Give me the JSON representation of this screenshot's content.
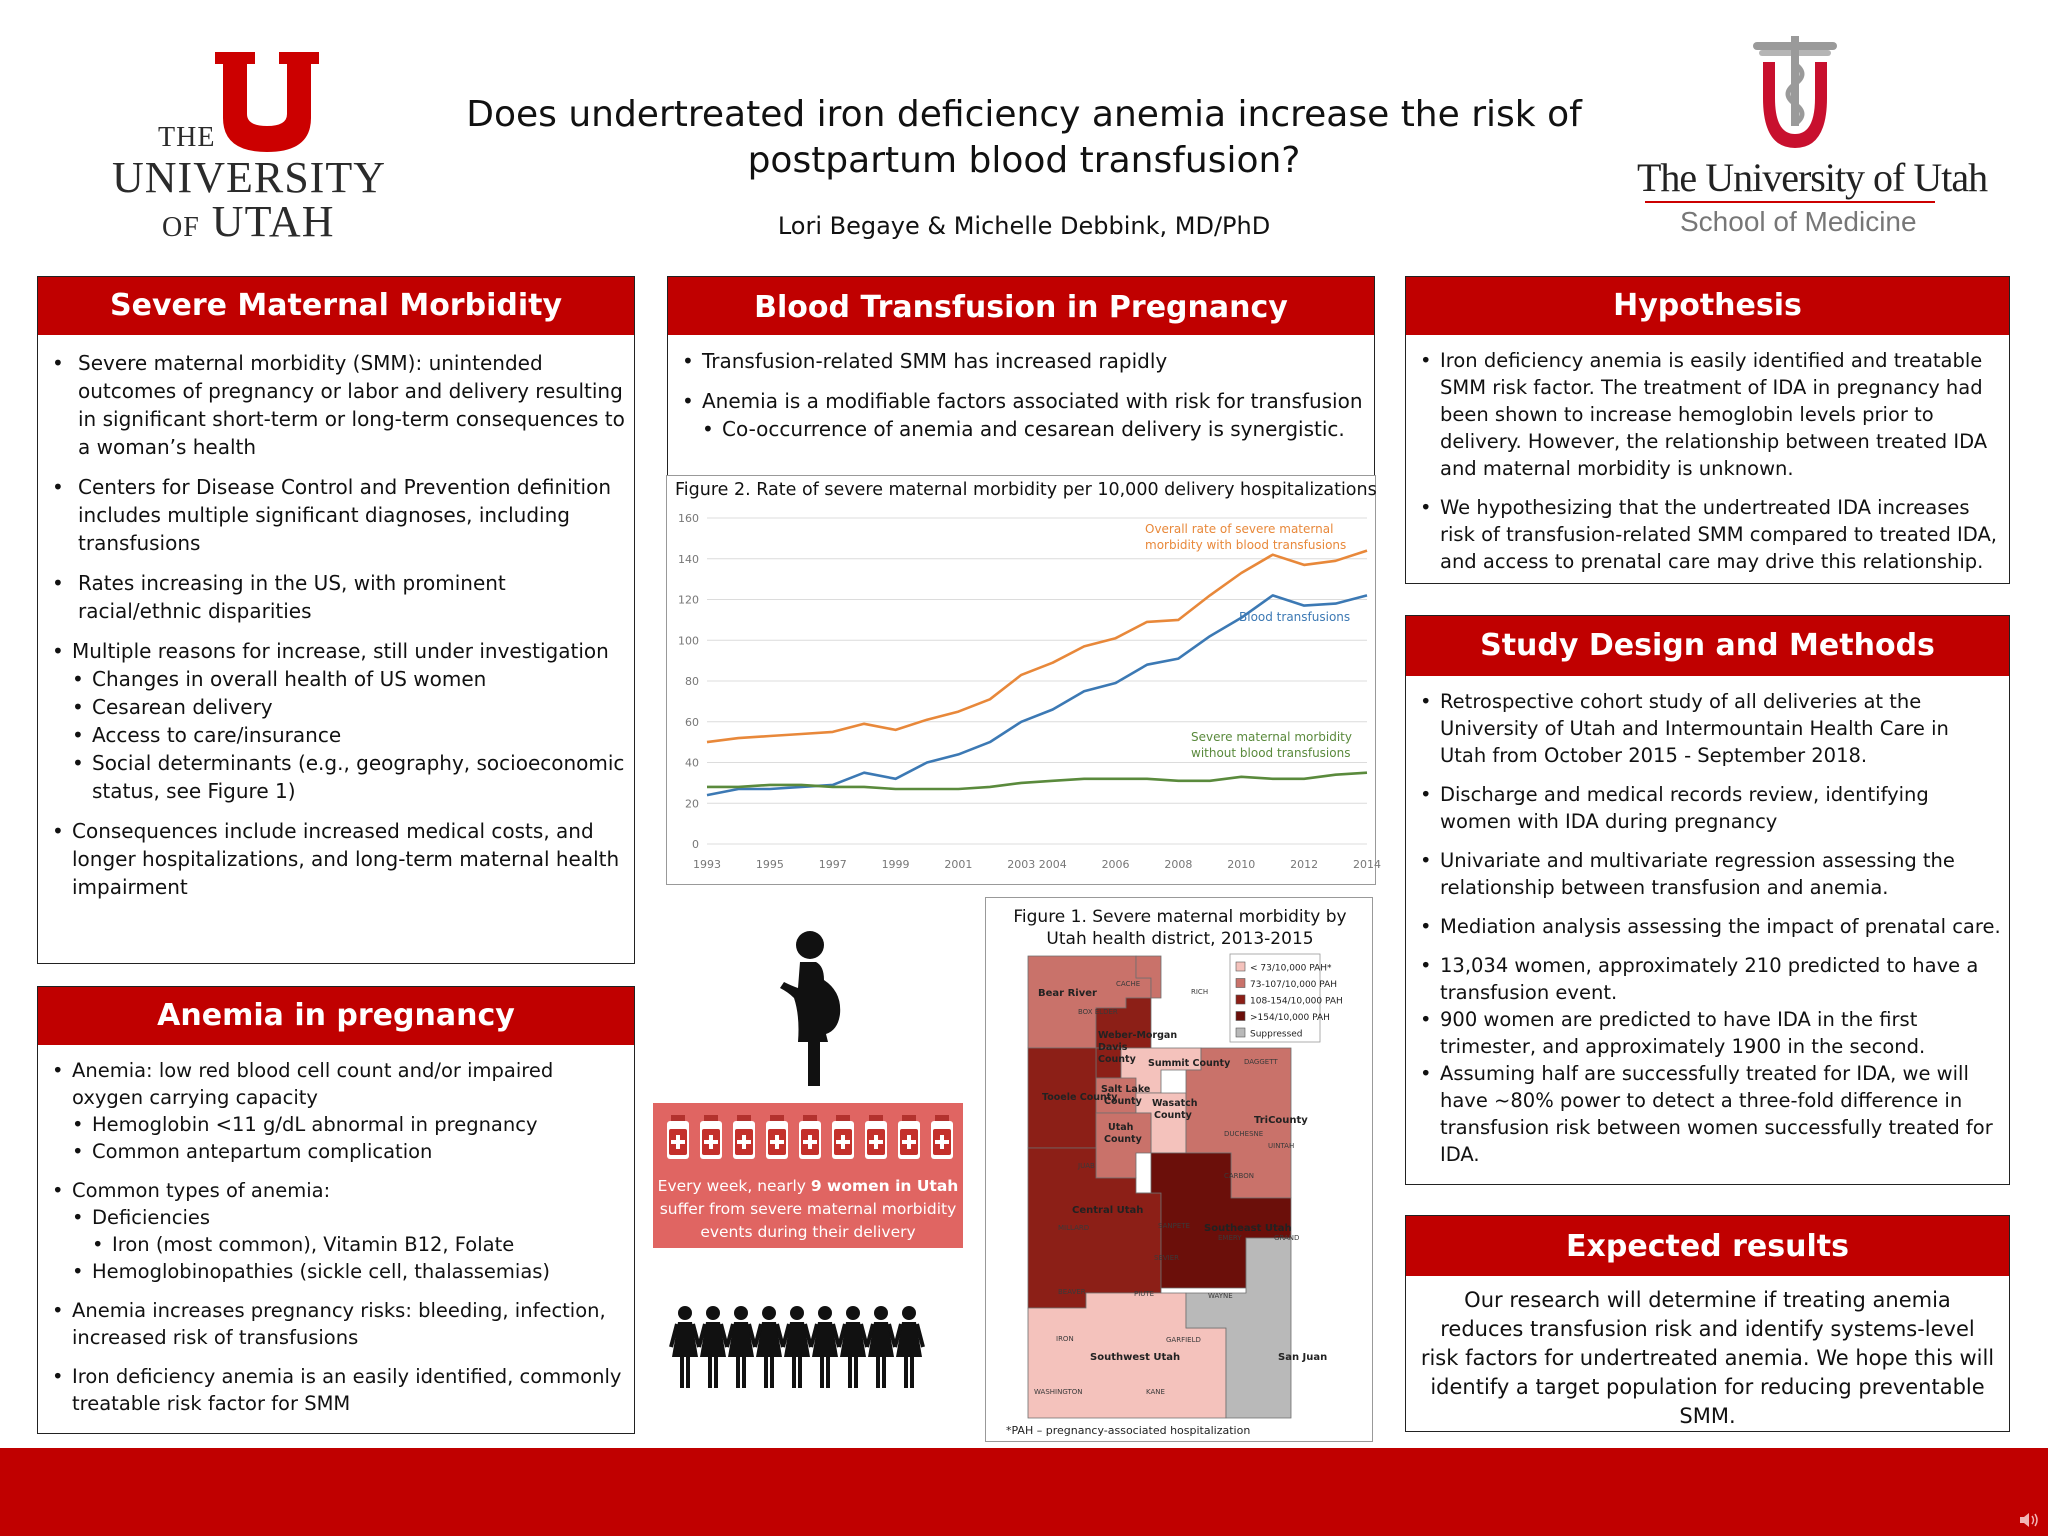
{
  "header": {
    "title_line1": "Does undertreated iron deficiency anemia increase the risk of",
    "title_line2": "postpartum blood transfusion?",
    "authors": "Lori Begaye & Michelle Debbink, MD/PhD",
    "uu_logo": {
      "the": "THE",
      "university": "UNIVERSITY",
      "of": "OF",
      "utah": "UTAH"
    },
    "som_logo": {
      "name": "The University of Utah",
      "sub": "School of Medicine"
    }
  },
  "smm": {
    "title": "Severe Maternal Morbidity",
    "items": [
      "Severe maternal morbidity (SMM): unintended outcomes of pregnancy or labor and delivery resulting in significant short-term or long-term consequences to a woman’s health",
      "Centers for Disease Control and Prevention definition includes multiple significant diagnoses, including transfusions",
      "Rates increasing in the US, with prominent racial/ethnic disparities",
      "Multiple reasons for increase, still under investigation",
      "Changes in overall health of US women",
      "Cesarean delivery",
      "Access to care/insurance",
      "Social determinants (e.g., geography, socioeconomic status, see Figure 1)",
      "Consequences include increased medical costs, and longer hospitalizations, and long-term maternal health impairment"
    ]
  },
  "anemia": {
    "title": "Anemia in pregnancy",
    "items": [
      "Anemia: low red blood cell count and/or impaired oxygen carrying capacity",
      "Hemoglobin <11 g/dL abnormal in pregnancy",
      "Common antepartum complication",
      "Common types of anemia:",
      "Deficiencies",
      "Iron (most common), Vitamin B12, Folate",
      "Hemoglobinopathies (sickle cell, thalassemias)",
      "Anemia increases pregnancy risks: bleeding, infection, increased risk of transfusions",
      "Iron deficiency anemia is an easily identified, commonly treatable risk factor for SMM"
    ]
  },
  "transfusion": {
    "title": "Blood Transfusion in Pregnancy",
    "items": [
      "Transfusion-related SMM has increased rapidly",
      "Anemia is a modifiable factors associated with risk for transfusion",
      "Co-occurrence of anemia and cesarean delivery is synergistic."
    ]
  },
  "figure2": {
    "caption": "Figure 2. Rate of severe maternal morbidity per 10,000 delivery hospitalizations",
    "label_overall": [
      "Overall rate of severe maternal",
      "morbidity with blood transfusions"
    ],
    "label_blood": "Blood transfusions",
    "label_without": [
      "Severe maternal morbidity",
      "without blood transfusions"
    ]
  },
  "chart_data": {
    "type": "line",
    "title": "Figure 2. Rate of severe maternal morbidity per 10,000 delivery hospitalizations",
    "x": [
      1993,
      1994,
      1995,
      1996,
      1997,
      1998,
      1999,
      2000,
      2001,
      2002,
      2003,
      2004,
      2005,
      2006,
      2007,
      2008,
      2009,
      2010,
      2011,
      2012,
      2013,
      2014
    ],
    "x_ticks": [
      "1993",
      "1995",
      "1997",
      "1999",
      "2001",
      "2003",
      "2004",
      "2006",
      "2008",
      "2010",
      "2012",
      "2014"
    ],
    "ylim": [
      0,
      160
    ],
    "y_ticks": [
      0,
      20,
      40,
      60,
      80,
      100,
      120,
      140,
      160
    ],
    "grid": true,
    "series": [
      {
        "name": "Overall rate of severe maternal morbidity with blood transfusions",
        "color": "#e8883a",
        "values": [
          50,
          52,
          53,
          54,
          55,
          59,
          56,
          61,
          65,
          71,
          83,
          89,
          97,
          101,
          109,
          110,
          122,
          133,
          142,
          137,
          139,
          144
        ]
      },
      {
        "name": "Blood transfusions",
        "color": "#3c79b4",
        "values": [
          24,
          27,
          27,
          28,
          29,
          35,
          32,
          40,
          44,
          50,
          60,
          66,
          75,
          79,
          88,
          91,
          102,
          111,
          122,
          117,
          118,
          122
        ]
      },
      {
        "name": "Severe maternal morbidity without blood transfusions",
        "color": "#5a8a3c",
        "values": [
          28,
          28,
          29,
          29,
          28,
          28,
          27,
          27,
          27,
          28,
          30,
          31,
          32,
          32,
          32,
          31,
          31,
          33,
          32,
          32,
          34,
          35
        ]
      }
    ]
  },
  "figure1": {
    "caption_line1": "Figure 1. Severe maternal morbidity by",
    "caption_line2": "Utah health district, 2013-2015",
    "legend": [
      {
        "label": "< 73/10,000 PAH*",
        "color": "#f4c2bc"
      },
      {
        "label": "73-107/10,000 PAH",
        "color": "#c9726a"
      },
      {
        "label": "108-154/10,000 PAH",
        "color": "#8c1f17"
      },
      {
        "label": ">154/10,000 PAH",
        "color": "#6b0f0a"
      },
      {
        "label": "Suppressed",
        "color": "#b9b9b9"
      }
    ],
    "districts": {
      "bear_river": "Bear River",
      "weber_morgan": "Weber-Morgan",
      "davis": "Davis County",
      "summit": "Summit County",
      "salt_lake": "Salt Lake County",
      "tooele": "Tooele County",
      "wasatch": "Wasatch County",
      "utah": "Utah County",
      "tricounty": "TriCounty",
      "central": "Central Utah",
      "southeast": "Southeast Utah",
      "southwest": "Southwest Utah",
      "san_juan": "San Juan"
    },
    "counties": {
      "cache": "CACHE",
      "rich": "RICH",
      "box_elder": "BOX ELDER",
      "daggett": "DAGGETT",
      "duchesne": "DUCHESNE",
      "uintah": "UINTAH",
      "juab": "JUAB",
      "carbon": "CARBON",
      "millard": "MILLARD",
      "sanpete": "SANPETE",
      "emery": "EMERY",
      "grand": "GRAND",
      "sevier": "SEVIER",
      "beaver": "BEAVER",
      "piute": "PIUTE",
      "wayne": "WAYNE",
      "iron": "IRON",
      "garfield": "GARFIELD",
      "washington": "WASHINGTON",
      "kane": "KANE"
    },
    "note": "*PAH – pregnancy-associated hospitalization"
  },
  "infographic": {
    "line1_pre": "Every week, nearly ",
    "line1_bold": "9 women in Utah",
    "line2": "suffer from severe maternal morbidity",
    "line3": "events during their delivery"
  },
  "hypothesis": {
    "title": "Hypothesis",
    "items": [
      "Iron deficiency anemia is easily identified and treatable SMM risk factor. The treatment of IDA in pregnancy had been shown to increase hemoglobin levels prior to delivery. However, the relationship between treated IDA and maternal morbidity is unknown.",
      "We hypothesizing that the undertreated IDA increases risk of transfusion-related SMM compared to treated IDA, and access to prenatal care may drive this relationship."
    ]
  },
  "methods": {
    "title": "Study Design and Methods",
    "items": [
      "Retrospective cohort study of all deliveries at the University of Utah and Intermountain Health Care in Utah from October 2015 - September 2018.",
      "Discharge and medical records review, identifying women with IDA during pregnancy",
      "Univariate and multivariate regression assessing the relationship between transfusion and anemia.",
      "Mediation analysis assessing the impact of prenatal care.",
      "13,034 women, approximately 210 predicted to have a transfusion event.",
      "900 women are predicted to have IDA in the first trimester, and approximately 1900 in the second.",
      "Assuming half are successfully treated for IDA, we will have ~80% power to detect a three-fold difference in transfusion risk between women successfully treated for IDA."
    ]
  },
  "expected": {
    "title": "Expected results",
    "text": "Our research will determine if treating anemia reduces transfusion risk and identify systems-level risk factors for undertreated anemia. We hope this will identify a target population for reducing preventable SMM."
  }
}
